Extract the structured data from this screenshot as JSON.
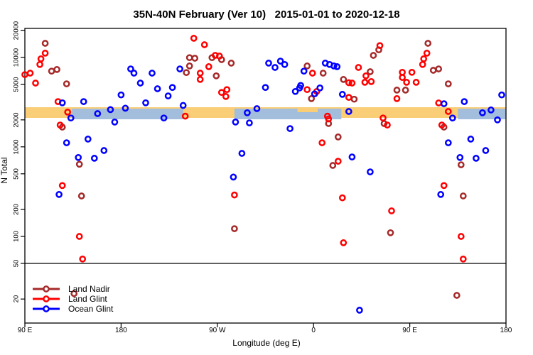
{
  "title": "35N-40N February (Ver 10)   2015-01-01 to 2020-12-18",
  "axes": {
    "x": {
      "label": "Longitude (deg E)",
      "note": "longitude axis wraps: spans 450 degrees starting at 90E",
      "range_deg": [
        90,
        540
      ],
      "ticks": [
        {
          "deg": 90,
          "label": "90 E"
        },
        {
          "deg": 180,
          "label": "180"
        },
        {
          "deg": 270,
          "label": "90 W"
        },
        {
          "deg": 360,
          "label": "0"
        },
        {
          "deg": 450,
          "label": "90 E"
        },
        {
          "deg": 540,
          "label": "180"
        }
      ]
    },
    "y": {
      "label": "N Total",
      "scale": "log10",
      "range": [
        11,
        21000
      ],
      "ticks": [
        20000,
        10000,
        5000,
        2000,
        1000,
        500,
        200,
        100,
        50,
        20
      ],
      "refline": 50
    }
  },
  "legend": {
    "items": [
      {
        "label": "Land Nadir",
        "color": "#A52A2A"
      },
      {
        "label": "Land Glint",
        "color": "#FF0000"
      },
      {
        "label": "Ocean Glint",
        "color": "#0000FF"
      }
    ]
  },
  "chart_data": {
    "type": "scatter",
    "title": "35N-40N February (Ver 10)   2015-01-01 to 2020-12-18",
    "xlabel": "Longitude (deg E)",
    "ylabel": "N Total",
    "x_units": "deg E along axis (90..540, values >180 wrap around the globe)",
    "grid": false,
    "legend_position": "bottom-left inside plot",
    "bands": {
      "description": "dense horizontal stripe of overlapping samples near N=2300",
      "value_center": 2300,
      "orange": {
        "color": "#F9CE76",
        "segments_deg": [
          [
            90,
            540
          ]
        ]
      },
      "blue": {
        "color": "#A3BDDD",
        "segments_deg": [
          [
            134,
            238
          ],
          [
            286,
            386
          ],
          [
            495,
            540
          ]
        ]
      },
      "orange_overlay_deg": [
        [
          345,
          364
        ]
      ]
    },
    "series": [
      {
        "name": "Land Nadir",
        "color": "#A52A2A",
        "points": [
          [
            109,
            14300
          ],
          [
            115,
            7000
          ],
          [
            120,
            7300
          ],
          [
            129,
            5050
          ],
          [
            125,
            1660
          ],
          [
            141,
            640
          ],
          [
            143,
            283
          ],
          [
            136,
            23
          ],
          [
            244,
            9900
          ],
          [
            249,
            9750
          ],
          [
            265,
            9900
          ],
          [
            274,
            9400
          ],
          [
            283,
            8600
          ],
          [
            244,
            8000
          ],
          [
            241,
            6750
          ],
          [
            269,
            6200
          ],
          [
            286,
            122
          ],
          [
            354,
            8000
          ],
          [
            369,
            6650
          ],
          [
            358,
            3450
          ],
          [
            374,
            1820
          ],
          [
            383,
            1290
          ],
          [
            378,
            620
          ],
          [
            388,
            5650
          ],
          [
            398,
            3400
          ],
          [
            413,
            6900
          ],
          [
            416,
            10500
          ],
          [
            421,
            12100
          ],
          [
            426,
            1820
          ],
          [
            432,
            110
          ],
          [
            438,
            4300
          ],
          [
            446,
            4300
          ],
          [
            467,
            14300
          ],
          [
            472,
            7150
          ],
          [
            477,
            7400
          ],
          [
            486,
            5050
          ],
          [
            482,
            1660
          ],
          [
            498,
            630
          ],
          [
            500,
            283
          ],
          [
            494,
            22
          ]
        ]
      },
      {
        "name": "Land Glint",
        "color": "#FF0000",
        "points": [
          [
            109,
            11100
          ],
          [
            105,
            9600
          ],
          [
            104,
            8300
          ],
          [
            95,
            6650
          ],
          [
            90,
            6400
          ],
          [
            100,
            5150
          ],
          [
            121,
            3200
          ],
          [
            130,
            2440
          ],
          [
            123,
            1750
          ],
          [
            125,
            370
          ],
          [
            141,
            100
          ],
          [
            144,
            56
          ],
          [
            248,
            16300
          ],
          [
            258,
            13800
          ],
          [
            268,
            10500
          ],
          [
            272,
            10300
          ],
          [
            262,
            7850
          ],
          [
            254,
            6650
          ],
          [
            254,
            5650
          ],
          [
            279,
            4350
          ],
          [
            274,
            4050
          ],
          [
            278,
            3650
          ],
          [
            240,
            2200
          ],
          [
            286,
            290
          ],
          [
            359,
            6650
          ],
          [
            368,
            1110
          ],
          [
            354,
            4350
          ],
          [
            363,
            4150
          ],
          [
            373,
            2200
          ],
          [
            374,
            2050
          ],
          [
            388,
            85
          ],
          [
            383,
            690
          ],
          [
            387,
            270
          ],
          [
            393,
            5200
          ],
          [
            396,
            5150
          ],
          [
            393,
            3560
          ],
          [
            402,
            7700
          ],
          [
            408,
            5250
          ],
          [
            414,
            5350
          ],
          [
            409,
            6200
          ],
          [
            422,
            13500
          ],
          [
            425,
            2100
          ],
          [
            429,
            1750
          ],
          [
            433,
            193
          ],
          [
            438,
            3450
          ],
          [
            443,
            6800
          ],
          [
            443,
            5950
          ],
          [
            447,
            5250
          ],
          [
            452,
            6800
          ],
          [
            456,
            5250
          ],
          [
            463,
            9600
          ],
          [
            462,
            8300
          ],
          [
            466,
            11100
          ],
          [
            477,
            3090
          ],
          [
            486,
            2480
          ],
          [
            480,
            1750
          ],
          [
            482,
            370
          ],
          [
            498,
            100
          ],
          [
            500,
            56
          ]
        ]
      },
      {
        "name": "Ocean Glint",
        "color": "#0000FF",
        "points": [
          [
            125,
            3100
          ],
          [
            145,
            3200
          ],
          [
            133,
            2100
          ],
          [
            158,
            2350
          ],
          [
            170,
            2600
          ],
          [
            174,
            1890
          ],
          [
            184,
            2700
          ],
          [
            180,
            3800
          ],
          [
            189,
            7400
          ],
          [
            192,
            6650
          ],
          [
            198,
            5150
          ],
          [
            129,
            1110
          ],
          [
            149,
            1220
          ],
          [
            164,
            910
          ],
          [
            140,
            760
          ],
          [
            155,
            745
          ],
          [
            122,
            294
          ],
          [
            203,
            3100
          ],
          [
            209,
            6650
          ],
          [
            214,
            4450
          ],
          [
            220,
            2100
          ],
          [
            224,
            3700
          ],
          [
            228,
            4600
          ],
          [
            235,
            7400
          ],
          [
            238,
            2900
          ],
          [
            287,
            1890
          ],
          [
            293,
            845
          ],
          [
            285,
            460
          ],
          [
            298,
            2400
          ],
          [
            300,
            1850
          ],
          [
            307,
            2670
          ],
          [
            315,
            4600
          ],
          [
            318,
            8600
          ],
          [
            324,
            7700
          ],
          [
            329,
            9050
          ],
          [
            333,
            8300
          ],
          [
            338,
            1600
          ],
          [
            343,
            4150
          ],
          [
            347,
            4550
          ],
          [
            348,
            4850
          ],
          [
            351,
            7000
          ],
          [
            361,
            3900
          ],
          [
            366,
            4550
          ],
          [
            371,
            8600
          ],
          [
            375,
            8300
          ],
          [
            379,
            8000
          ],
          [
            382,
            7850
          ],
          [
            387,
            3850
          ],
          [
            393,
            2480
          ],
          [
            396,
            770
          ],
          [
            403,
            15
          ],
          [
            413,
            525
          ],
          [
            479,
            294
          ],
          [
            482,
            3030
          ],
          [
            486,
            1110
          ],
          [
            490,
            2100
          ],
          [
            497,
            760
          ],
          [
            501,
            3200
          ],
          [
            507,
            1220
          ],
          [
            512,
            745
          ],
          [
            518,
            2400
          ],
          [
            521,
            910
          ],
          [
            526,
            2580
          ],
          [
            532,
            2000
          ],
          [
            536,
            3800
          ]
        ]
      }
    ]
  }
}
